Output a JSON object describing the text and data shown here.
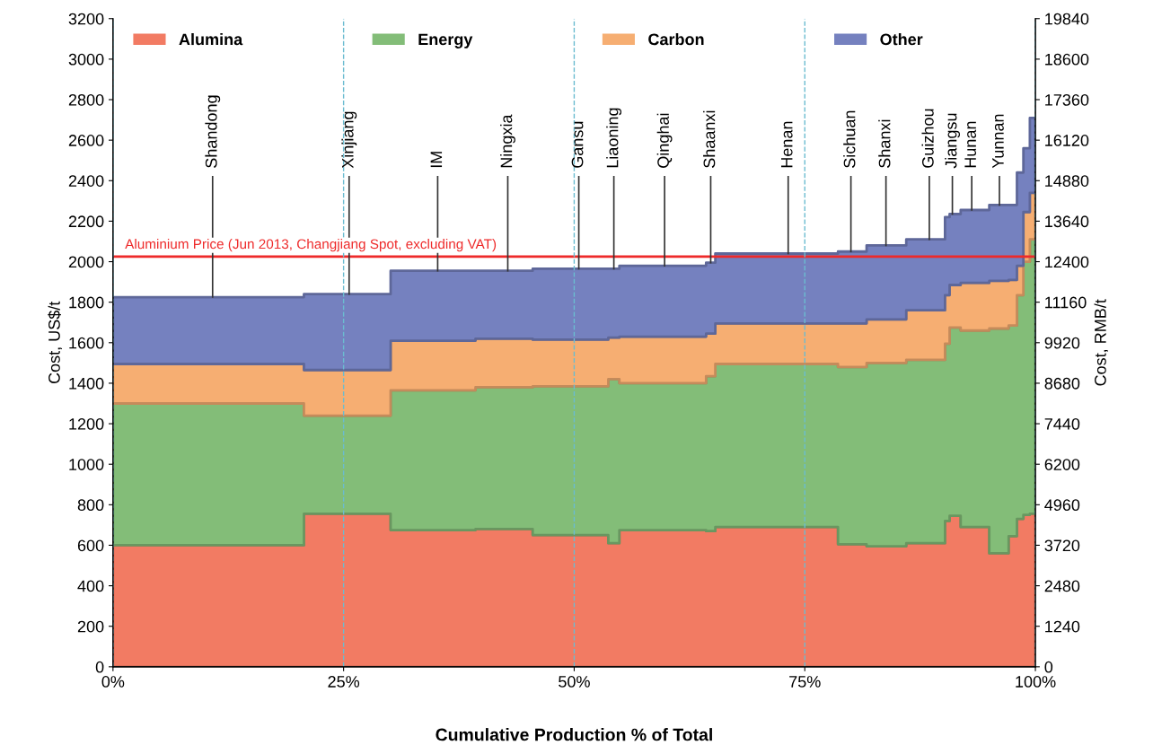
{
  "chart_data": {
    "type": "area",
    "stacked": true,
    "xlabel": "Cumulative Production % of Total",
    "ylabel": "Cost, US$/t",
    "y2label": "Cost, RMB/t",
    "x": [
      0,
      20.7,
      20.7,
      30.1,
      30.1,
      39.3,
      39.3,
      45.5,
      45.5,
      53.7,
      53.7,
      54.9,
      54.9,
      64.3,
      64.3,
      65.3,
      65.3,
      78.6,
      78.6,
      81.7,
      81.7,
      86.0,
      86.0,
      90.2,
      90.2,
      90.7,
      90.7,
      91.9,
      91.9,
      95.0,
      95.0,
      97.1,
      97.1,
      98.0,
      98.0,
      98.7,
      98.7,
      99.4,
      99.4,
      100
    ],
    "series": [
      {
        "name": "Alumina",
        "color": "#f27b63",
        "values": [
          600,
          600,
          755,
          755,
          675,
          675,
          680,
          680,
          650,
          650,
          610,
          610,
          675,
          675,
          670,
          670,
          690,
          690,
          605,
          605,
          595,
          595,
          610,
          610,
          720,
          720,
          745,
          745,
          690,
          690,
          560,
          560,
          645,
          645,
          730,
          730,
          750,
          750,
          755,
          755
        ]
      },
      {
        "name": "Energy",
        "color": "#83bd78",
        "values": [
          700,
          700,
          485,
          485,
          690,
          690,
          700,
          700,
          735,
          735,
          810,
          810,
          725,
          725,
          765,
          765,
          805,
          805,
          875,
          875,
          905,
          905,
          905,
          905,
          875,
          875,
          930,
          930,
          970,
          970,
          1110,
          1110,
          1040,
          1040,
          1105,
          1105,
          1250,
          1250,
          1355,
          1355
        ]
      },
      {
        "name": "Carbon",
        "color": "#f6ae72",
        "values": [
          195,
          195,
          225,
          225,
          245,
          245,
          240,
          240,
          230,
          230,
          205,
          205,
          230,
          230,
          210,
          210,
          200,
          200,
          215,
          215,
          215,
          215,
          245,
          245,
          240,
          240,
          210,
          210,
          235,
          235,
          235,
          235,
          225,
          225,
          145,
          145,
          245,
          245,
          230,
          230
        ]
      },
      {
        "name": "Other",
        "color": "#7581bf",
        "values": [
          330,
          330,
          375,
          375,
          345,
          345,
          335,
          335,
          350,
          350,
          340,
          340,
          350,
          350,
          350,
          350,
          345,
          345,
          355,
          355,
          365,
          365,
          350,
          350,
          385,
          385,
          350,
          350,
          360,
          360,
          375,
          375,
          370,
          370,
          460,
          460,
          315,
          315,
          370,
          370
        ]
      }
    ],
    "xlim": [
      0,
      100
    ],
    "xticks": [
      {
        "value": 0,
        "label": "0%"
      },
      {
        "value": 25,
        "label": "25%"
      },
      {
        "value": 50,
        "label": "50%"
      },
      {
        "value": 75,
        "label": "75%"
      },
      {
        "value": 100,
        "label": "100%"
      }
    ],
    "ylim": [
      0,
      3200
    ],
    "yticks": [
      0,
      200,
      400,
      600,
      800,
      1000,
      1200,
      1400,
      1600,
      1800,
      2000,
      2200,
      2400,
      2600,
      2800,
      3000,
      3200
    ],
    "y2lim": [
      0,
      19840
    ],
    "y2ticks": [
      0,
      1240,
      2480,
      3720,
      4960,
      6200,
      7440,
      8680,
      9920,
      11160,
      12400,
      13640,
      14880,
      16120,
      17360,
      18600,
      19840
    ],
    "ref_lines": [
      {
        "axis": "y",
        "value": 2025,
        "label": "Aluminium Price (Jun 2013, Changjiang Spot, excluding VAT)",
        "color": "#ee2a2a",
        "line_style": "solid"
      }
    ],
    "annotations": [
      {
        "text": "Shandong",
        "x": 10.8,
        "y": 1825
      },
      {
        "text": "Xinjiang",
        "x": 25.6,
        "y": 1840
      },
      {
        "text": "IM",
        "x": 35.2,
        "y": 1955
      },
      {
        "text": "Ningxia",
        "x": 42.8,
        "y": 1955
      },
      {
        "text": "Gansu",
        "x": 50.5,
        "y": 1965
      },
      {
        "text": "Liaoning",
        "x": 54.3,
        "y": 1965
      },
      {
        "text": "Qinghai",
        "x": 59.8,
        "y": 1980
      },
      {
        "text": "Shaanxi",
        "x": 64.8,
        "y": 1995
      },
      {
        "text": "Henan",
        "x": 73.2,
        "y": 2040
      },
      {
        "text": "Sichuan",
        "x": 80.0,
        "y": 2050
      },
      {
        "text": "Shanxi",
        "x": 83.8,
        "y": 2080
      },
      {
        "text": "Guizhou",
        "x": 88.5,
        "y": 2110
      },
      {
        "text": "Jiangsu",
        "x": 91.0,
        "y": 2235
      },
      {
        "text": "Hunan",
        "x": 93.1,
        "y": 2255
      },
      {
        "text": "Yunnan",
        "x": 96.1,
        "y": 2280
      }
    ],
    "legend": "top",
    "grid": "x"
  }
}
